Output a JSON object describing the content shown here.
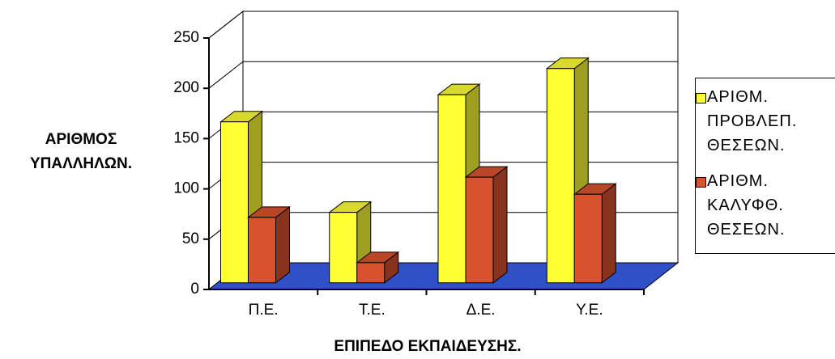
{
  "chart_data": {
    "type": "bar3d",
    "x_label": "ΕΠΙΠΕΔΟ ΕΚΠΑΙΔΕΥΣΗΣ.",
    "y_label": "ΑΡΙΘΜΟΣ ΥΠΑΛΛΗΛΩΝ.",
    "categories": [
      "Π.Ε.",
      "Τ.Ε.",
      "Δ.Ε.",
      "Υ.Ε."
    ],
    "series": [
      {
        "name": "ΑΡΙΘΜ. ΠΡΟΒΛΕΠ. ΘΕΣΕΩΝ.",
        "color": "#ffff33",
        "values": [
          160,
          70,
          187,
          213
        ]
      },
      {
        "name": "ΑΡΙΘΜ. ΚΑΛΥΦΘ. ΘΕΣΕΩΝ.",
        "color": "#d9522e",
        "values": [
          65,
          20,
          105,
          88
        ]
      }
    ],
    "ylim": [
      0,
      250
    ],
    "yticks": [
      0,
      50,
      100,
      150,
      200,
      250
    ],
    "grid": true,
    "legend": "right"
  }
}
